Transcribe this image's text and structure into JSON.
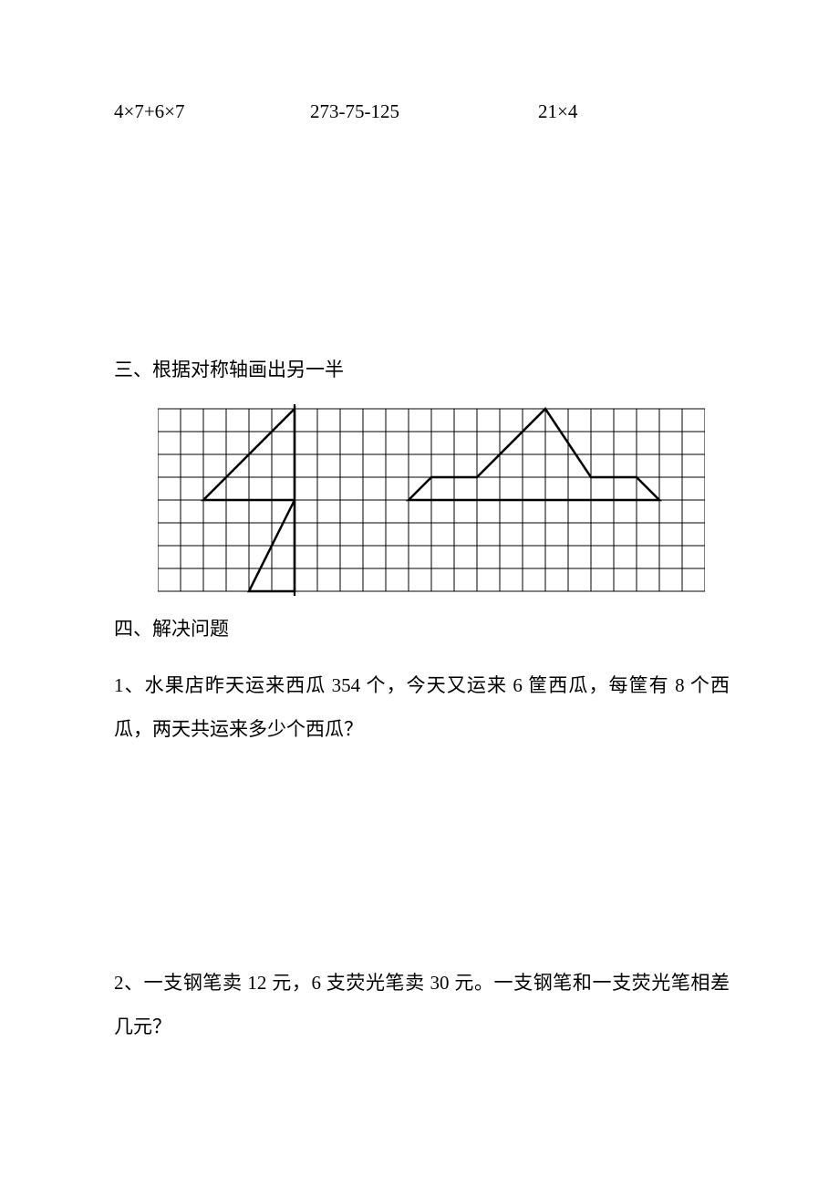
{
  "expressions": {
    "e1": "4×7+6×7",
    "e2": "273-75-125",
    "e3": "21×4"
  },
  "section3": {
    "title": "三、根据对称轴画出另一半"
  },
  "section4": {
    "title": "四、解决问题",
    "q1": "1、水果店昨天运来西瓜 354 个，今天又运来 6 筐西瓜，每筐有 8 个西瓜，两天共运来多少个西瓜？",
    "q2": "2、一支钢笔卖 12 元，6 支荧光笔卖 30 元。一支钢笔和一支荧光笔相差几元？"
  },
  "grid": {
    "cols": 24,
    "rows": 8,
    "cell_size": 25,
    "grid_stroke": "#000000",
    "grid_stroke_width": 1,
    "shape_stroke": "#000000",
    "shape_stroke_width": 2.5,
    "axis_stroke_width": 2.2,
    "shape1_axis": {
      "x": 6,
      "y1": -0.4,
      "y2": 8.4
    },
    "shape1_paths": [
      "M 2 4 L 6 4 L 6 0 Z",
      "M 4 8 L 6 4 L 6 8 Z"
    ],
    "shape2_paths": [
      "M 11 4 L 12 3 L 14 3 L 17 0 L 19 3 L 21 3 L 22 4 Z"
    ]
  }
}
